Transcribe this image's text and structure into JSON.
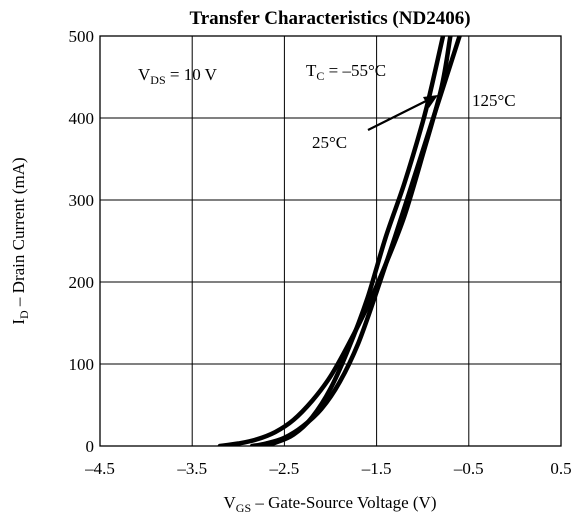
{
  "chart_data": {
    "type": "line",
    "title": "Transfer Characteristics (ND2406)",
    "xlabel": {
      "main": "V",
      "sub": "GS",
      "rest": " – Gate-Source Voltage (V)"
    },
    "ylabel": {
      "main": "I",
      "sub": "D",
      "rest": " – Drain Current (mA)"
    },
    "xlim": [
      -4.5,
      0.5
    ],
    "ylim": [
      0,
      500
    ],
    "xticks": [
      -4.5,
      -3.5,
      -2.5,
      -1.5,
      -0.5,
      0.5
    ],
    "xtick_labels": [
      "–4.5",
      "–3.5",
      "–2.5",
      "–1.5",
      "–0.5",
      "0.5"
    ],
    "yticks": [
      0,
      100,
      200,
      300,
      400,
      500
    ],
    "ytick_labels": [
      "0",
      "100",
      "200",
      "300",
      "400",
      "500"
    ],
    "grid": true,
    "legend": "none",
    "line_color": "#000000",
    "series": [
      {
        "x": [
          -3.2,
          -3.0,
          -2.8,
          -2.6,
          -2.4,
          -2.2,
          -2.0,
          -1.8,
          -1.6,
          -1.4,
          -1.2,
          -1.0,
          -0.8,
          -0.7
        ],
        "y": [
          0,
          3,
          8,
          17,
          32,
          55,
          85,
          125,
          170,
          222,
          280,
          355,
          435,
          500
        ]
      },
      {
        "x": [
          -2.85,
          -2.7,
          -2.5,
          -2.3,
          -2.1,
          -1.9,
          -1.7,
          -1.5,
          -1.3,
          -1.1,
          -0.9,
          -0.7,
          -0.6
        ],
        "y": [
          0,
          3,
          10,
          24,
          45,
          78,
          125,
          188,
          255,
          325,
          395,
          465,
          500
        ]
      },
      {
        "x": [
          -2.75,
          -2.6,
          -2.4,
          -2.2,
          -2.0,
          -1.8,
          -1.6,
          -1.4,
          -1.2,
          -1.0,
          -0.9,
          -0.78
        ],
        "y": [
          0,
          4,
          14,
          35,
          70,
          120,
          180,
          255,
          320,
          395,
          440,
          500
        ]
      }
    ],
    "annotations": {
      "vds": {
        "main": "V",
        "sub": "DS",
        "rest": " = 10 V"
      },
      "tc_cold": {
        "main": "T",
        "sub": "C",
        "rest": " = –55°C"
      },
      "t_25": "25°C",
      "t_125": "125°C"
    }
  }
}
